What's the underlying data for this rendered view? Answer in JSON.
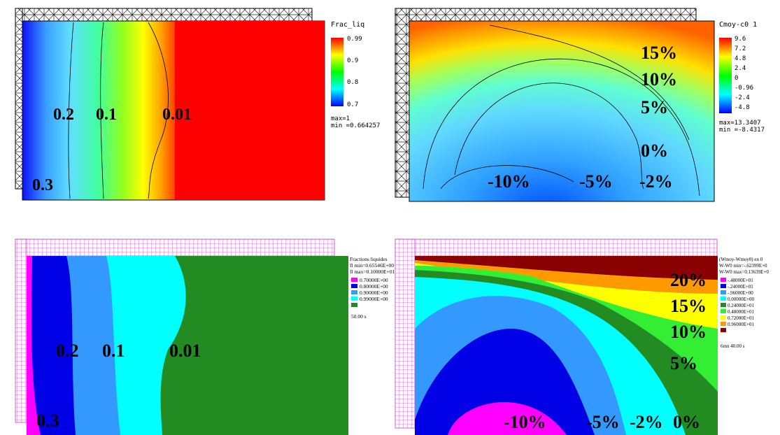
{
  "panels": {
    "top_left": {
      "legend_title": "Frac_liq",
      "scale_labels": [
        "0.99",
        "0.9",
        "0.8",
        "0.7"
      ],
      "max_text": "max=1",
      "min_text": "min =0.664257",
      "contour_labels": [
        "0.2",
        "0.1",
        "0.01",
        "0.3"
      ]
    },
    "top_right": {
      "legend_title": "Cmoy-c0  1",
      "scale_labels": [
        "9.6",
        "7.2",
        "4.8",
        "2.4",
        "0",
        "-0.96",
        "-2.4",
        "-4.8"
      ],
      "max_text": "max=13.3407",
      "min_text": "min =-8.4317",
      "contour_labels": [
        "15%",
        "10%",
        "5%",
        "0%",
        "-10%",
        "-5%",
        "-2%"
      ]
    },
    "bottom_left": {
      "legend_line1": "Fractions liquides",
      "legend_line2": "fl min=0.65546E+00",
      "legend_line3": "fl max=0.10000E+01",
      "scale_labels": [
        "0.70000E+00",
        "0.80000E+00",
        "0.90000E+00",
        "0.99000E+00"
      ],
      "time": "50.00 s",
      "contour_labels": [
        "0.2",
        "0.1",
        "0.01",
        "0.3"
      ]
    },
    "bottom_right": {
      "legend_line1": "(Wmoy-Wmoy0) en 0",
      "legend_line2": "W-W0 min=-.62399E+0",
      "legend_line3": "W-W0 max=0.13639E+0",
      "scale_labels": [
        "-.48000E+01",
        "-.24000E+01",
        "-.96000E+00",
        "0.00000E+00",
        "0.24000E+01",
        "0.48000E+01",
        "0.72000E+01",
        "0.96000E+01"
      ],
      "time": "6mn 40.00 s",
      "contour_labels": [
        "20%",
        "15%",
        "10%",
        "5%",
        "-10%",
        "-5%",
        "-2%",
        "0%"
      ]
    }
  },
  "colors": {
    "magenta": "#ff00ff",
    "blue": "#0000e6",
    "mid_blue": "#3399ff",
    "cyan": "#00ffff",
    "green": "#228b22",
    "light_green": "#33ee33",
    "yellow": "#ffff00",
    "orange": "#ff9900",
    "dark_red": "#8b0000",
    "red": "#ff0000"
  }
}
